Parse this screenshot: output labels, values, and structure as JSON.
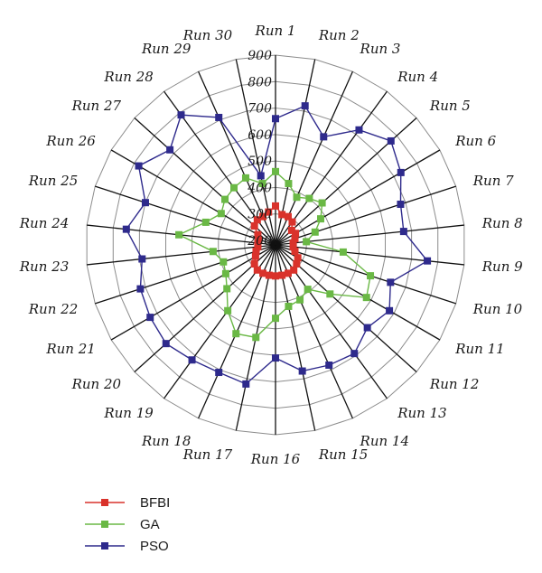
{
  "chart_data": {
    "type": "radar",
    "categories": [
      "Run 1",
      "Run 2",
      "Run 3",
      "Run 4",
      "Run 5",
      "Run 6",
      "Run 7",
      "Run 8",
      "Run 9",
      "Run 10",
      "Run 11",
      "Run 12",
      "Run 13",
      "Run 14",
      "Run 15",
      "Run 16",
      "Run 17",
      "Run 18",
      "Run 19",
      "Run 20",
      "Run 21",
      "Run 22",
      "Run 23",
      "Run 24",
      "Run 25",
      "Run 26",
      "Run 27",
      "Run 28",
      "Run 29",
      "Run 30"
    ],
    "radial_ticks": [
      200,
      300,
      400,
      500,
      600,
      700,
      800,
      900
    ],
    "rlim": [
      200,
      900
    ],
    "grid": true,
    "legend_position": "bottom-left",
    "series": [
      {
        "name": "BFBI",
        "color": "#d9322b",
        "values": [
          330,
          300,
          300,
          290,
          265,
          270,
          260,
          250,
          250,
          260,
          280,
          290,
          300,
          300,
          300,
          300,
          300,
          300,
          300,
          290,
          270,
          260,
          250,
          250,
          250,
          260,
          290,
          300,
          300,
          310
        ]
      },
      {
        "name": "GA",
        "color": "#6ab845",
        "values": [
          460,
          420,
          380,
          400,
          420,
          380,
          340,
          300,
          440,
          560,
          580,
          460,
          390,
          410,
          420,
          460,
          540,
          550,
          490,
          430,
          400,
          390,
          420,
          550,
          460,
          420,
          440,
          450,
          460,
          420
        ]
      },
      {
        "name": "PSO",
        "color": "#2e2a8c",
        "values": [
          660,
          720,
          630,
          720,
          770,
          730,
          680,
          670,
          760,
          640,
          680,
          650,
          690,
          680,
          670,
          610,
          720,
          710,
          720,
          740,
          730,
          720,
          690,
          750,
          700,
          780,
          720,
          790,
          710,
          450
        ]
      }
    ]
  }
}
